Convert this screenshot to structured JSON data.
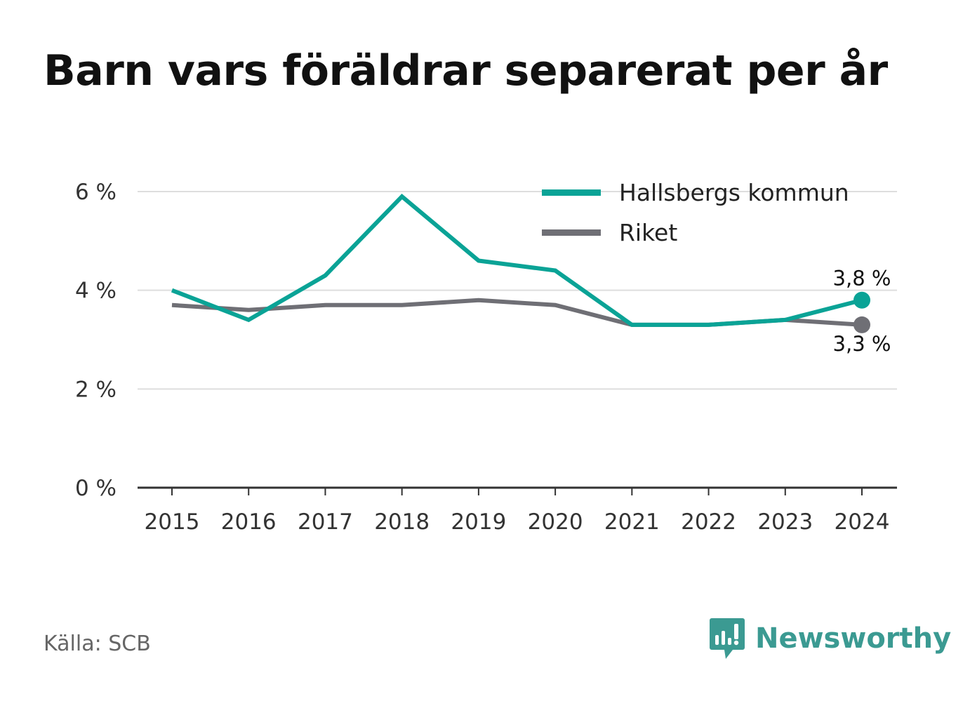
{
  "chart_data": {
    "type": "line",
    "title": "Barn vars föräldrar separerat per år",
    "categories": [
      "2015",
      "2016",
      "2017",
      "2018",
      "2019",
      "2020",
      "2021",
      "2022",
      "2023",
      "2024"
    ],
    "series": [
      {
        "name": "Hallsbergs kommun",
        "color": "#0aa396",
        "values": [
          4.0,
          3.4,
          4.3,
          5.9,
          4.6,
          4.4,
          3.3,
          3.3,
          3.4,
          3.8
        ],
        "end_label": "3,8 %"
      },
      {
        "name": "Riket",
        "color": "#6f6f75",
        "values": [
          3.7,
          3.6,
          3.7,
          3.7,
          3.8,
          3.7,
          3.3,
          3.3,
          3.4,
          3.3
        ],
        "end_label": "3,3 %"
      }
    ],
    "yticks": [
      {
        "value": 0,
        "label": "0 %"
      },
      {
        "value": 2,
        "label": "2 %"
      },
      {
        "value": 4,
        "label": "4 %"
      },
      {
        "value": 6,
        "label": "6 %"
      }
    ],
    "ylim": [
      0,
      6
    ],
    "grid": true,
    "legend_position": "top-right",
    "source": "Källa: SCB"
  },
  "brand": {
    "name": "Newsworthy",
    "color": "#3b9a92",
    "icon": "newsworthy-logo-icon"
  }
}
